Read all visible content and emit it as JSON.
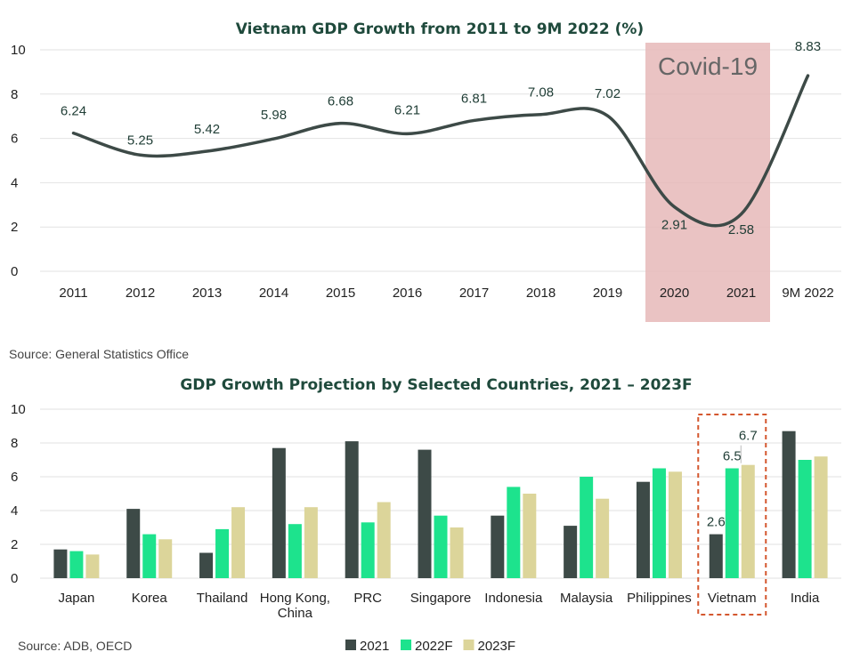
{
  "chart_data": [
    {
      "type": "line",
      "title": "Vietnam GDP Growth from 2011 to 9M 2022 (%)",
      "categories": [
        "2011",
        "2012",
        "2013",
        "2014",
        "2015",
        "2016",
        "2017",
        "2018",
        "2019",
        "2020",
        "2021",
        "9M 2022"
      ],
      "values": [
        6.24,
        5.25,
        5.42,
        5.98,
        6.68,
        6.21,
        6.81,
        7.08,
        7.02,
        2.91,
        2.58,
        8.83
      ],
      "data_labels": [
        "6.24",
        "5.25",
        "5.42",
        "5.98",
        "6.68",
        "6.21",
        "6.81",
        "7.08",
        "7.02",
        "2.91",
        "2.58",
        "8.83"
      ],
      "ylim": [
        0,
        10
      ],
      "yticks": [
        "0",
        "2",
        "4",
        "6",
        "8",
        "10"
      ],
      "grid": true,
      "line_color": "#3d4a47",
      "highlight": {
        "label": "Covid-19",
        "categories": [
          "2020",
          "2021"
        ],
        "color": "#e6b8b8"
      },
      "source": "Source: General Statistics Office"
    },
    {
      "type": "bar",
      "title": "GDP Growth Projection by Selected Countries, 2021 – 2023F",
      "categories": [
        "Japan",
        "Korea",
        "Thailand",
        "Hong Kong,\nChina",
        "PRC",
        "Singapore",
        "Indonesia",
        "Malaysia",
        "Philippines",
        "Vietnam",
        "India"
      ],
      "series": [
        {
          "name": "2021",
          "color": "#3d4a47",
          "values": [
            1.7,
            4.1,
            1.5,
            7.7,
            8.1,
            7.6,
            3.7,
            3.1,
            5.7,
            2.6,
            8.7
          ]
        },
        {
          "name": "2022F",
          "color": "#1de38d",
          "values": [
            1.6,
            2.6,
            2.9,
            3.2,
            3.3,
            3.7,
            5.4,
            6.0,
            6.5,
            6.5,
            7.0
          ]
        },
        {
          "name": "2023F",
          "color": "#dcd59a",
          "values": [
            1.4,
            2.3,
            4.2,
            4.2,
            4.5,
            3.0,
            5.0,
            4.7,
            6.3,
            6.7,
            7.2
          ]
        }
      ],
      "data_labels": {
        "Vietnam": [
          "2.6",
          "6.5",
          "6.7"
        ]
      },
      "ylim": [
        0,
        10
      ],
      "yticks": [
        "0",
        "2",
        "4",
        "6",
        "8",
        "10"
      ],
      "grid": true,
      "legend": "bottom",
      "highlight": {
        "category": "Vietnam",
        "color": "#d4572e"
      },
      "source": "Source: ADB, OECD"
    }
  ]
}
